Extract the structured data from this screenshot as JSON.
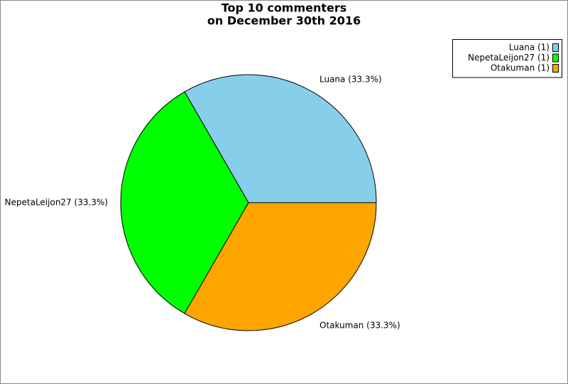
{
  "chart_data": {
    "type": "pie",
    "title": [
      "Top 10 commenters",
      "on December 30th 2016"
    ],
    "categories": [
      "Luana",
      "NepetaLeijon27",
      "Otakuman"
    ],
    "values": [
      1,
      1,
      1
    ],
    "slice_labels": [
      "Luana (33.3%)",
      "NepetaLeijon27 (33.3%)",
      "Otakuman (33.3%)"
    ],
    "legend_labels": [
      "Luana (1)",
      "NepetaLeijon27 (1)",
      "Otakuman (1)"
    ],
    "colors": [
      "#87ceeb",
      "#00ff00",
      "#ffa500"
    ],
    "legend_position": "upper right"
  }
}
